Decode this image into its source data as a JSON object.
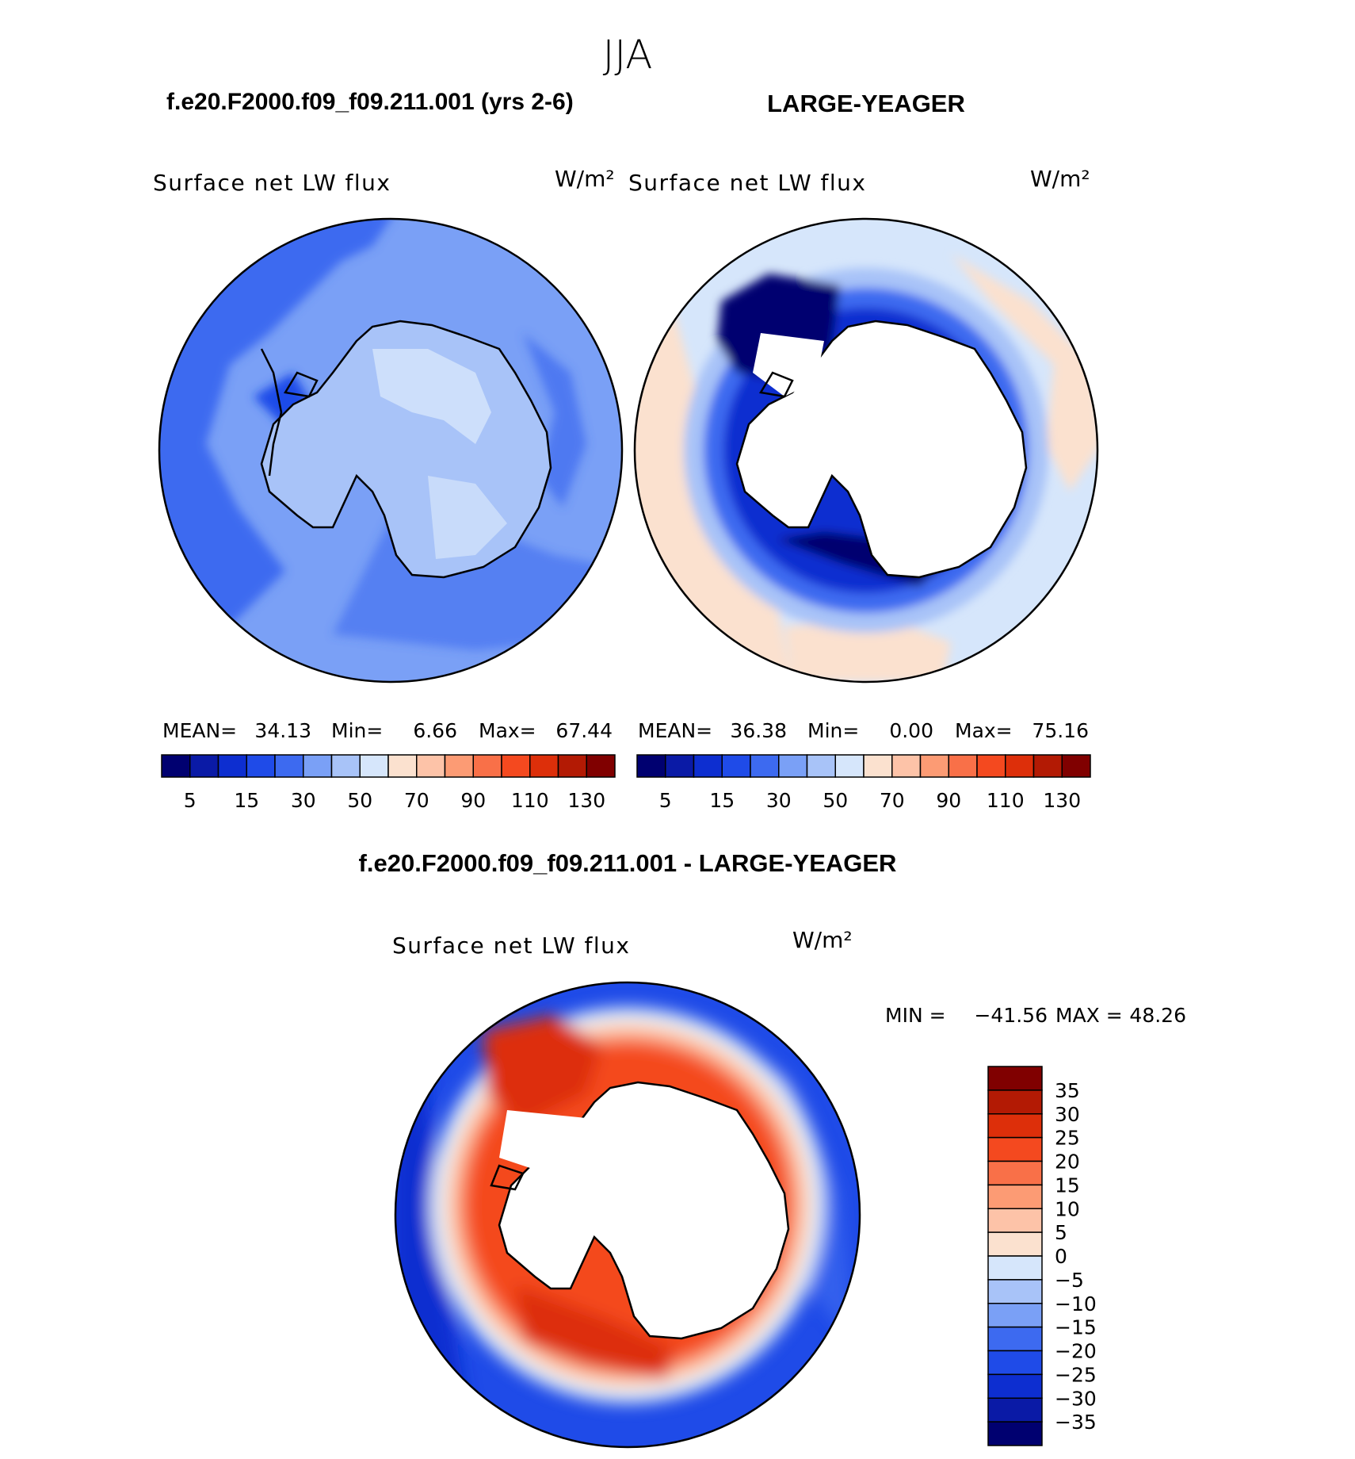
{
  "figure": {
    "season": "JJA",
    "colors": {
      "blues": [
        "#000070",
        "#0a1aa6",
        "#0d2ed0",
        "#1f4be8",
        "#3d6af0",
        "#7aa0f6",
        "#a8c3f8",
        "#d6e6fb"
      ],
      "reds": [
        "#fbe1cf",
        "#fdc3a8",
        "#fc9b74",
        "#f97048",
        "#f4491f",
        "#dd2f0a",
        "#b31a04",
        "#800000"
      ],
      "land_white": "#ffffff",
      "coast": "#000000"
    }
  },
  "chart_data": [
    {
      "type": "heatmap",
      "case_title": "f.e20.F2000.f09_f09.211.001 (yrs 2-6)",
      "variable": "Surface net LW flux",
      "units": "W/m²",
      "stats": {
        "mean_label": "MEAN=",
        "mean": "34.13",
        "min_label": "Min=",
        "min": "6.66",
        "max_label": "Max=",
        "max": "67.44"
      },
      "colorbar": {
        "orientation": "horizontal",
        "tick_labels": [
          "5",
          "15",
          "30",
          "50",
          "70",
          "90",
          "110",
          "130"
        ]
      }
    },
    {
      "type": "heatmap",
      "case_title": "LARGE-YEAGER",
      "variable": "Surface net LW flux",
      "units": "W/m²",
      "stats": {
        "mean_label": "MEAN=",
        "mean": "36.38",
        "min_label": "Min=",
        "min": "0.00",
        "max_label": "Max=",
        "max": "75.16"
      },
      "colorbar": {
        "orientation": "horizontal",
        "tick_labels": [
          "5",
          "15",
          "30",
          "50",
          "70",
          "90",
          "110",
          "130"
        ]
      }
    },
    {
      "type": "heatmap",
      "case_title": "f.e20.F2000.f09_f09.211.001 - LARGE-YEAGER",
      "variable": "Surface net LW flux",
      "units": "W/m²",
      "stats": {
        "min_label": "MIN =",
        "min": "−41.56",
        "max_label": "MAX =",
        "max": "48.26"
      },
      "colorbar": {
        "orientation": "vertical",
        "tick_labels": [
          "35",
          "30",
          "25",
          "20",
          "15",
          "10",
          "5",
          "0",
          "−5",
          "−10",
          "−15",
          "−20",
          "−25",
          "−30",
          "−35"
        ]
      }
    }
  ]
}
